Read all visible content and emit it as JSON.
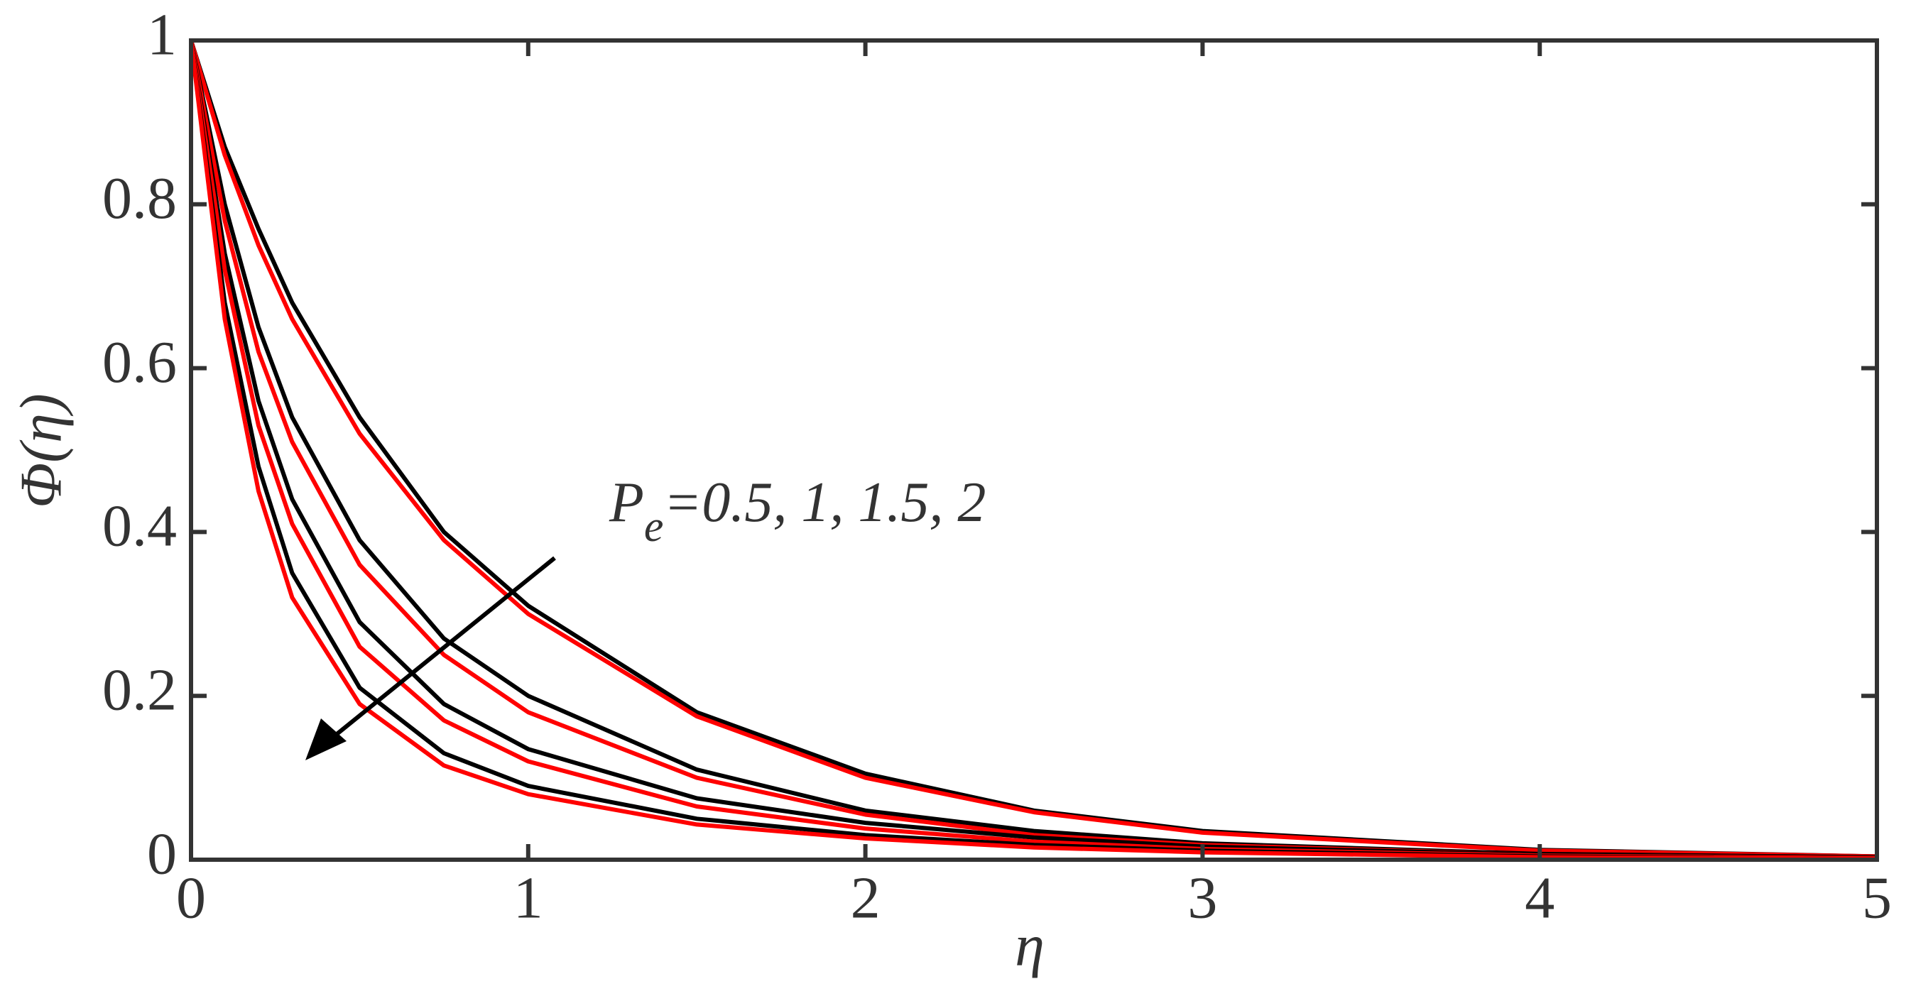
{
  "chart_data": {
    "type": "line",
    "x_label": "η",
    "y_label": "Φ(η)",
    "annotation": [
      "P",
      "e",
      "=0.5, 1, 1.5, 2"
    ],
    "x": [
      0,
      0.1,
      0.2,
      0.3,
      0.5,
      0.75,
      1,
      1.5,
      2,
      2.5,
      3,
      4,
      5
    ],
    "series": [
      {
        "color": "#000000",
        "values": [
          1,
          0.87,
          0.77,
          0.68,
          0.54,
          0.4,
          0.31,
          0.18,
          0.105,
          0.06,
          0.035,
          0.012,
          0.004
        ]
      },
      {
        "color": "#ff0000",
        "values": [
          1,
          0.86,
          0.75,
          0.66,
          0.52,
          0.39,
          0.3,
          0.175,
          0.1,
          0.058,
          0.033,
          0.011,
          0.004
        ]
      },
      {
        "color": "#000000",
        "values": [
          1,
          0.8,
          0.65,
          0.54,
          0.39,
          0.27,
          0.2,
          0.11,
          0.06,
          0.035,
          0.02,
          0.007,
          0.003
        ]
      },
      {
        "color": "#ff0000",
        "values": [
          1,
          0.78,
          0.62,
          0.51,
          0.36,
          0.25,
          0.18,
          0.1,
          0.055,
          0.03,
          0.018,
          0.006,
          0.002
        ]
      },
      {
        "color": "#000000",
        "values": [
          1,
          0.74,
          0.56,
          0.44,
          0.29,
          0.19,
          0.135,
          0.075,
          0.045,
          0.027,
          0.016,
          0.006,
          0.002
        ]
      },
      {
        "color": "#ff0000",
        "values": [
          1,
          0.72,
          0.53,
          0.41,
          0.26,
          0.17,
          0.12,
          0.065,
          0.038,
          0.022,
          0.013,
          0.005,
          0.002
        ]
      },
      {
        "color": "#000000",
        "values": [
          1,
          0.68,
          0.48,
          0.35,
          0.21,
          0.13,
          0.09,
          0.05,
          0.03,
          0.018,
          0.011,
          0.004,
          0.001
        ]
      },
      {
        "color": "#ff0000",
        "values": [
          1,
          0.66,
          0.45,
          0.32,
          0.19,
          0.115,
          0.08,
          0.043,
          0.026,
          0.015,
          0.009,
          0.003,
          0.001
        ]
      }
    ],
    "xlim": [
      0,
      5
    ],
    "ylim": [
      0,
      1
    ],
    "xticks": [
      0,
      1,
      2,
      3,
      4,
      5
    ],
    "yticks": [
      0,
      0.2,
      0.4,
      0.6,
      0.8,
      1
    ]
  }
}
